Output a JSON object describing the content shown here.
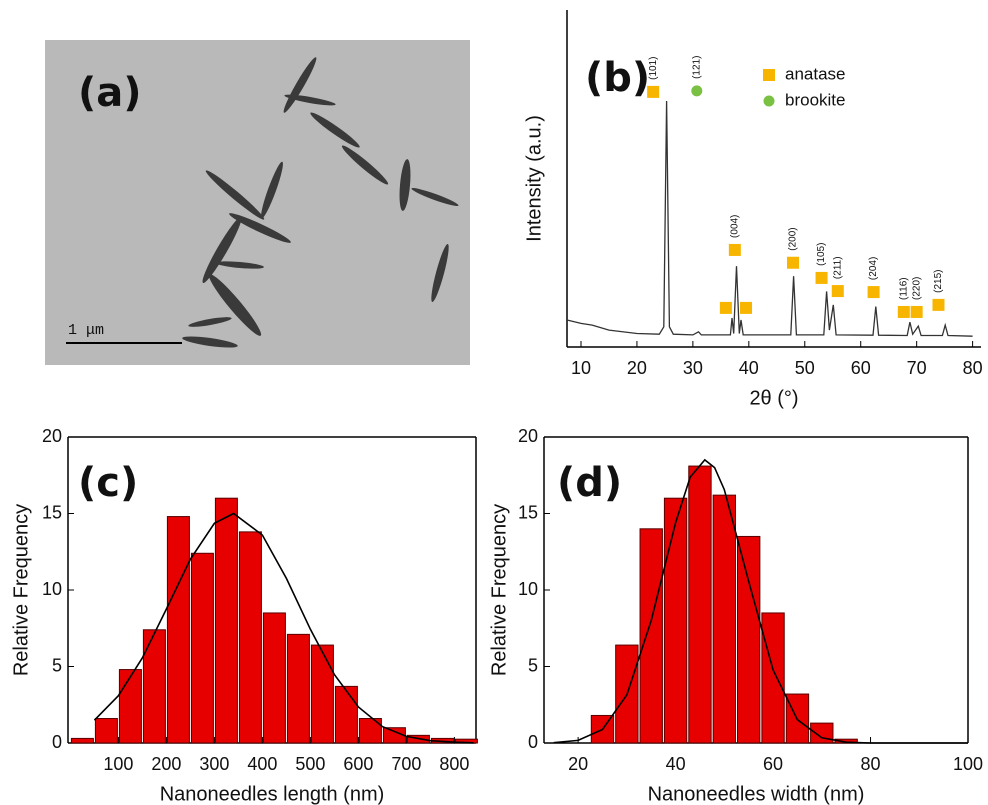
{
  "image": {
    "label": "(a)",
    "scale_bar": "1 μm"
  },
  "chart_data": [
    {
      "type": "line",
      "label": "(b)",
      "xlabel": "2θ (°)",
      "ylabel": "Intensity (a.u.)",
      "box": false,
      "color": "#333333",
      "xlim": [
        7.5,
        81.5
      ],
      "ylim": [
        0,
        100
      ],
      "xticks": [
        10,
        20,
        30,
        40,
        50,
        60,
        70,
        80
      ],
      "x": [
        7.5,
        10,
        12,
        15,
        20,
        24,
        24.8,
        25.3,
        25.8,
        26.5,
        30,
        31,
        31.5,
        36.7,
        37.0,
        37.3,
        37.8,
        38.3,
        38.6,
        39,
        47.5,
        48,
        48.5,
        53.4,
        53.9,
        54.4,
        55.1,
        55.6,
        62.2,
        62.7,
        63.2,
        68.3,
        68.8,
        69.3,
        70.3,
        70.8,
        74.6,
        75.1,
        75.6,
        80
      ],
      "values": [
        8,
        7,
        6.5,
        5,
        4,
        3.8,
        6,
        73,
        6,
        3.8,
        3.6,
        4.5,
        3.6,
        3.6,
        8.6,
        4,
        24,
        4,
        8,
        3.6,
        3.6,
        21,
        3.6,
        3.6,
        16.5,
        5,
        12.5,
        3.6,
        3.5,
        12,
        3.5,
        3.4,
        7.4,
        3.8,
        6.2,
        3.4,
        3.4,
        6.5,
        3.4,
        3.2
      ],
      "legend": "top-right",
      "marker_series": [
        {
          "name": "anatase",
          "color": "#f7b500",
          "shape": "square",
          "x": [
            22.9,
            35.9,
            37.5,
            39.5,
            47.9,
            53,
            55.9,
            62.3,
            67.7,
            70,
            73.9
          ],
          "y": [
            75.7,
            11.6,
            28.8,
            11.6,
            25,
            20.5,
            16.6,
            16.3,
            10.4,
            10.4,
            12.5
          ],
          "labels": [
            "(101)",
            null,
            "(004)",
            null,
            "(200)",
            "(105)",
            "(211)",
            "(204)",
            "(116)",
            "(220)",
            "(215)"
          ]
        },
        {
          "name": "brookite",
          "color": "#7ac143",
          "shape": "circle",
          "x": [
            30.7
          ],
          "y": [
            76
          ],
          "labels": [
            "(121)"
          ]
        }
      ]
    },
    {
      "type": "histogram",
      "label": "(c)",
      "xlabel": "Nanoneedles length (nm)",
      "ylabel": "Relative Frequency",
      "box": true,
      "color": "#e60000",
      "xlim": [
        -5,
        845
      ],
      "ylim": [
        0,
        20
      ],
      "xticks": [
        100,
        200,
        300,
        400,
        500,
        600,
        700,
        800
      ],
      "yticks": [
        0,
        5,
        10,
        15,
        20
      ],
      "bins": [
        0,
        50,
        100,
        150,
        200,
        250,
        300,
        350,
        400,
        450,
        500,
        550,
        600,
        650,
        700,
        750,
        800,
        850
      ],
      "values": [
        0.3,
        1.6,
        4.8,
        7.4,
        14.8,
        12.4,
        16,
        13.8,
        8.5,
        7.1,
        6.4,
        3.7,
        1.6,
        1.0,
        0.5,
        0.3,
        0.25
      ],
      "fit": {
        "x": [
          50,
          100,
          150,
          200,
          250,
          300,
          340,
          400,
          450,
          500,
          550,
          600,
          650,
          700,
          750,
          800,
          840
        ],
        "y": [
          1.49,
          3.09,
          5.57,
          8.76,
          12.01,
          14.36,
          15,
          13.59,
          10.76,
          7.43,
          4.47,
          2.35,
          1.07,
          0.43,
          0.15,
          0.05,
          0.01
        ]
      }
    },
    {
      "type": "histogram",
      "label": "(d)",
      "xlabel": "Nanoneedles width (nm)",
      "ylabel": "Relative Frequency",
      "box": true,
      "color": "#e60000",
      "xlim": [
        13,
        100
      ],
      "ylim": [
        0,
        20
      ],
      "xticks": [
        20,
        40,
        60,
        80,
        100
      ],
      "yticks": [
        0,
        5,
        10,
        15,
        20
      ],
      "bins": [
        22.5,
        27.5,
        32.5,
        37.5,
        42.5,
        47.5,
        52.5,
        57.5,
        62.5,
        67.5,
        72.5,
        77.5
      ],
      "values": [
        1.8,
        6.4,
        14,
        16,
        18.1,
        16.2,
        13.5,
        8.5,
        3.2,
        1.3,
        0.25
      ],
      "fit": {
        "x": [
          15,
          20,
          25,
          30,
          35,
          40,
          43,
          46,
          48,
          50,
          55,
          60,
          65,
          70,
          75,
          80,
          100
        ],
        "y": [
          0.02,
          0.17,
          0.88,
          3.15,
          8.0,
          14.4,
          17.38,
          18.5,
          18.0,
          16.56,
          10.56,
          4.77,
          1.52,
          0.34,
          0.05,
          0,
          0
        ]
      }
    }
  ]
}
